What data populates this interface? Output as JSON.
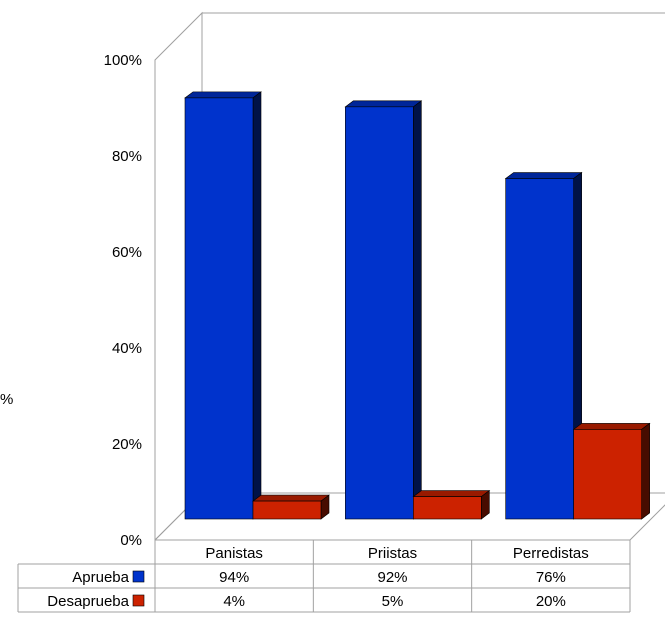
{
  "chart_data": {
    "type": "bar",
    "title": "",
    "xlabel": "",
    "ylabel": "%",
    "ylim": [
      0,
      100
    ],
    "ytick_labels": [
      "0%",
      "20%",
      "40%",
      "60%",
      "80%",
      "100%"
    ],
    "categories": [
      "Panistas",
      "Priistas",
      "Perredistas"
    ],
    "series": [
      {
        "name": "Aprueba",
        "values": [
          94,
          92,
          76
        ],
        "labels": [
          "94%",
          "92%",
          "76%"
        ],
        "color": "#0033CC"
      },
      {
        "name": "Desaprueba",
        "values": [
          4,
          5,
          20
        ],
        "labels": [
          "4%",
          "5%",
          "20%"
        ],
        "color": "#CC2200"
      }
    ],
    "grid": false,
    "legend": "data-table",
    "style": "3d-clustered-columns"
  }
}
